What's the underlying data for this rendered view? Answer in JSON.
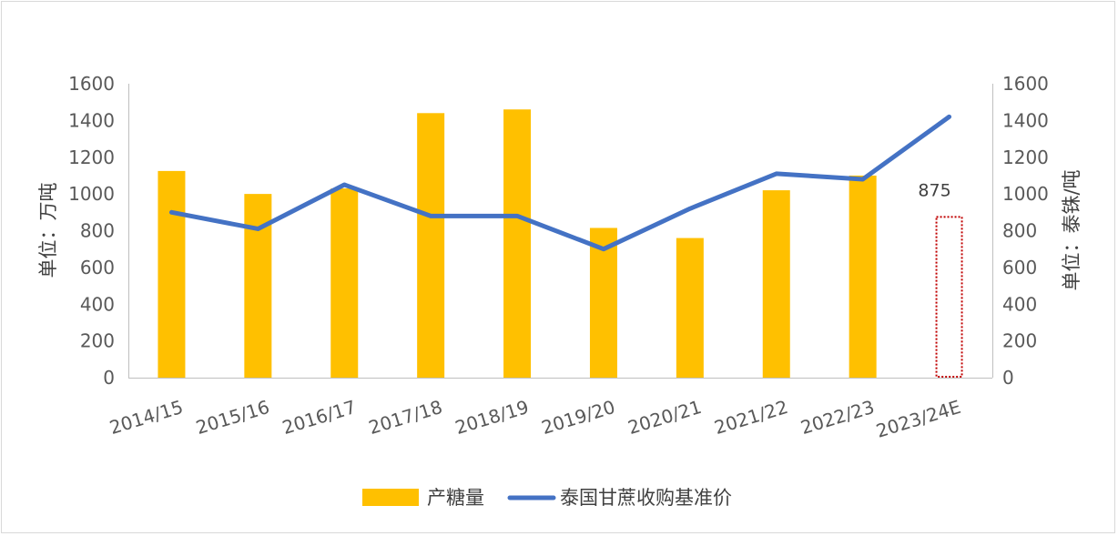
{
  "chart_data": {
    "type": "bar",
    "categories": [
      "2014/15",
      "2015/16",
      "2016/17",
      "2017/18",
      "2018/19",
      "2019/20",
      "2020/21",
      "2021/22",
      "2022/23",
      "2023/24E"
    ],
    "series": [
      {
        "name": "产糖量",
        "type": "bar",
        "axis": "left",
        "color": "#FFC000",
        "values": [
          1125,
          1000,
          1030,
          1440,
          1460,
          815,
          760,
          1020,
          1100,
          875
        ],
        "styles": [
          "solid",
          "solid",
          "solid",
          "solid",
          "solid",
          "solid",
          "solid",
          "solid",
          "solid",
          "dotted-outline"
        ]
      },
      {
        "name": "泰国甘蔗收购基准价",
        "type": "line",
        "axis": "right",
        "color": "#4472C4",
        "values": [
          900,
          810,
          1050,
          880,
          880,
          700,
          920,
          1110,
          1080,
          1420
        ]
      }
    ],
    "data_labels": [
      {
        "index": 9,
        "text": "875"
      }
    ],
    "y_left": {
      "label": "单位：万吨",
      "min": 0,
      "max": 1600,
      "step": 200
    },
    "y_right": {
      "label": "单位：泰铢/吨",
      "min": 0,
      "max": 1600,
      "step": 200
    },
    "legend_position": "bottom",
    "grid": false,
    "dotted_outline_color": "#C00000"
  }
}
